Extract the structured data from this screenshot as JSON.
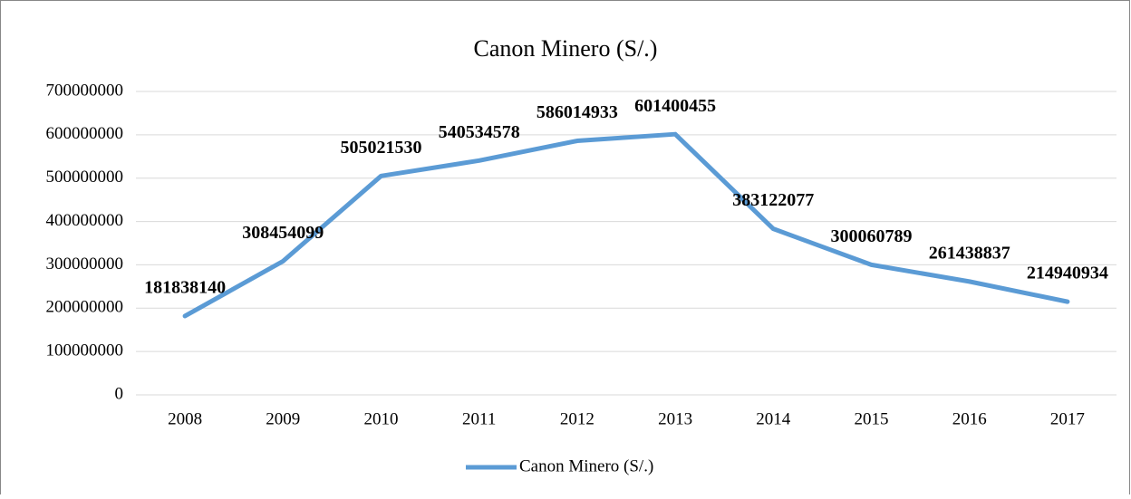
{
  "chart_data": {
    "type": "line",
    "title": "Canon Minero (S/.)",
    "categories": [
      "2008",
      "2009",
      "2010",
      "2011",
      "2012",
      "2013",
      "2014",
      "2015",
      "2016",
      "2017"
    ],
    "series": [
      {
        "name": "Canon Minero (S/.)",
        "color": "#5b9bd5",
        "values": [
          181838140,
          308454099,
          505021530,
          540534578,
          586014933,
          601400455,
          383122077,
          300060789,
          261438837,
          214940934
        ]
      }
    ],
    "ylim": [
      0,
      700000000
    ],
    "yticks": [
      0,
      100000000,
      200000000,
      300000000,
      400000000,
      500000000,
      600000000,
      700000000
    ],
    "grid": true,
    "legend": "bottom"
  }
}
